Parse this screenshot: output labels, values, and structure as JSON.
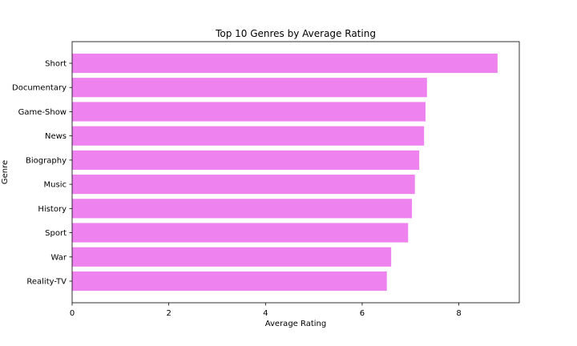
{
  "chart_data": {
    "type": "bar",
    "orientation": "horizontal",
    "title": "Top 10 Genres by Average Rating",
    "xlabel": "Average Rating",
    "ylabel": "Genre",
    "categories": [
      "Short",
      "Documentary",
      "Game-Show",
      "News",
      "Biography",
      "Music",
      "History",
      "Sport",
      "War",
      "Reality-TV"
    ],
    "values": [
      8.8,
      7.34,
      7.31,
      7.28,
      7.18,
      7.09,
      7.03,
      6.95,
      6.6,
      6.51
    ],
    "xlim": [
      0,
      9.25
    ],
    "xticks": [
      0,
      2,
      4,
      6,
      8
    ],
    "bar_color": "#ee82ee",
    "grid": false,
    "legend": "none"
  }
}
